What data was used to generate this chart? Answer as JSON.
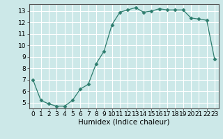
{
  "x": [
    0,
    1,
    2,
    3,
    4,
    5,
    6,
    7,
    8,
    9,
    10,
    11,
    12,
    13,
    14,
    15,
    16,
    17,
    18,
    19,
    20,
    21,
    22,
    23
  ],
  "y": [
    7.0,
    5.2,
    4.9,
    4.7,
    4.7,
    5.2,
    6.2,
    6.6,
    8.4,
    9.5,
    11.8,
    12.9,
    13.1,
    13.3,
    12.9,
    13.0,
    13.2,
    13.1,
    13.1,
    13.1,
    12.4,
    12.3,
    12.2,
    8.8
  ],
  "line_color": "#2e7d6e",
  "marker": "D",
  "marker_size": 2.5,
  "bg_color": "#cce8e8",
  "grid_color": "#ffffff",
  "xlabel": "Humidex (Indice chaleur)",
  "xlim": [
    -0.5,
    23.5
  ],
  "ylim": [
    4.5,
    13.6
  ],
  "yticks": [
    5,
    6,
    7,
    8,
    9,
    10,
    11,
    12,
    13
  ],
  "xticks": [
    0,
    1,
    2,
    3,
    4,
    5,
    6,
    7,
    8,
    9,
    10,
    11,
    12,
    13,
    14,
    15,
    16,
    17,
    18,
    19,
    20,
    21,
    22,
    23
  ],
  "tick_fontsize": 6.5,
  "xlabel_fontsize": 7.5
}
